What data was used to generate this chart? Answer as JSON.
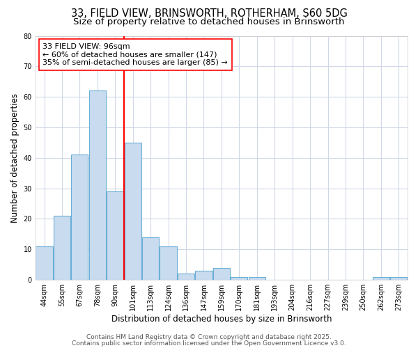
{
  "title1": "33, FIELD VIEW, BRINSWORTH, ROTHERHAM, S60 5DG",
  "title2": "Size of property relative to detached houses in Brinsworth",
  "xlabel": "Distribution of detached houses by size in Brinsworth",
  "ylabel": "Number of detached properties",
  "bar_labels": [
    "44sqm",
    "55sqm",
    "67sqm",
    "78sqm",
    "90sqm",
    "101sqm",
    "113sqm",
    "124sqm",
    "136sqm",
    "147sqm",
    "159sqm",
    "170sqm",
    "181sqm",
    "193sqm",
    "204sqm",
    "216sqm",
    "227sqm",
    "239sqm",
    "250sqm",
    "262sqm",
    "273sqm"
  ],
  "bar_values": [
    11,
    21,
    41,
    62,
    29,
    45,
    14,
    11,
    2,
    3,
    4,
    1,
    1,
    0,
    0,
    0,
    0,
    0,
    0,
    1,
    1
  ],
  "bar_color": "#c9dcef",
  "bar_edge_color": "#6aaed6",
  "red_line_x": 4.5,
  "annotation_title": "33 FIELD VIEW: 96sqm",
  "annotation_line1": "← 60% of detached houses are smaller (147)",
  "annotation_line2": "35% of semi-detached houses are larger (85) →",
  "annotation_box_color": "white",
  "annotation_box_edge": "red",
  "ylim": [
    0,
    80
  ],
  "yticks": [
    0,
    10,
    20,
    30,
    40,
    50,
    60,
    70,
    80
  ],
  "footer1": "Contains HM Land Registry data © Crown copyright and database right 2025.",
  "footer2": "Contains public sector information licensed under the Open Government Licence v3.0.",
  "bg_color": "#ffffff",
  "plot_bg_color": "#ffffff",
  "grid_color": "#d0d8e8",
  "title_fontsize": 10.5,
  "subtitle_fontsize": 9.5,
  "axis_label_fontsize": 8.5,
  "tick_fontsize": 7,
  "annotation_fontsize": 8,
  "footer_fontsize": 6.5
}
